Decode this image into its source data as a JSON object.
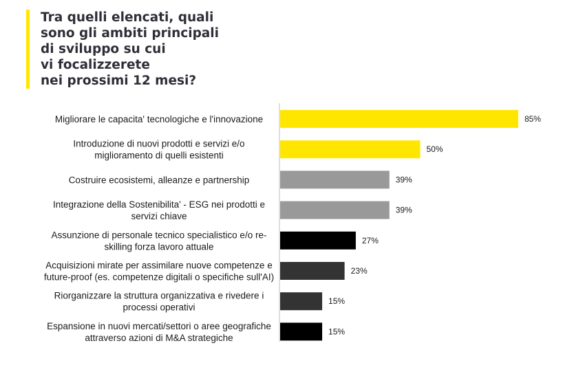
{
  "chart_data": {
    "type": "bar",
    "orientation": "horizontal",
    "title": "Tra quelli elencati, quali sono gli ambiti principali di sviluppo su cui vi focalizzerete nei prossimi 12 mesi?",
    "categories": [
      "Migliorare le capacita' tecnologiche e l'innovazione",
      "Introduzione di nuovi prodotti e servizi e/o miglioramento di quelli esistenti",
      "Costruire ecosistemi, alleanze e partnership",
      "Integrazione della Sostenibilita' - ESG nei prodotti e servizi chiave",
      "Assunzione di personale tecnico specialistico e/o re-skilling forza lavoro attuale",
      "Acquisizioni mirate per assimilare nuove competenze e future-proof (es. competenze digitali o specifiche sull'AI)",
      "Riorganizzare la struttura organizzativa e rivedere i processi operativi",
      "Espansione in nuovi mercati/settori o aree geografiche attraverso azioni di M&A strategiche"
    ],
    "category_lines": [
      [
        "Migliorare le capacita' tecnologiche e l'innovazione"
      ],
      [
        "Introduzione di nuovi prodotti e servizi e/o",
        "miglioramento di quelli esistenti"
      ],
      [
        "Costruire ecosistemi, alleanze e partnership"
      ],
      [
        "Integrazione della Sostenibilita' - ESG nei prodotti e",
        "servizi chiave"
      ],
      [
        "Assunzione di personale tecnico specialistico e/o re-",
        "skilling forza lavoro attuale"
      ],
      [
        "Acquisizioni mirate per assimilare nuove competenze e",
        "future-proof (es. competenze digitali o specifiche sull'AI)"
      ],
      [
        "Riorganizzare la struttura organizzativa e rivedere i",
        "processi operativi"
      ],
      [
        "Espansione in nuovi mercati/settori o aree geografiche",
        "attraverso azioni di M&A strategiche"
      ]
    ],
    "values": [
      85,
      50,
      39,
      39,
      27,
      23,
      15,
      15
    ],
    "value_labels": [
      "85%",
      "50%",
      "39%",
      "39%",
      "27%",
      "23%",
      "15%",
      "15%"
    ],
    "bar_colors": [
      "#ffe600",
      "#ffe600",
      "#999999",
      "#999999",
      "#000000",
      "#333333",
      "#333333",
      "#000000"
    ],
    "xlim": [
      0,
      100
    ],
    "grid": false,
    "legend": "none"
  }
}
